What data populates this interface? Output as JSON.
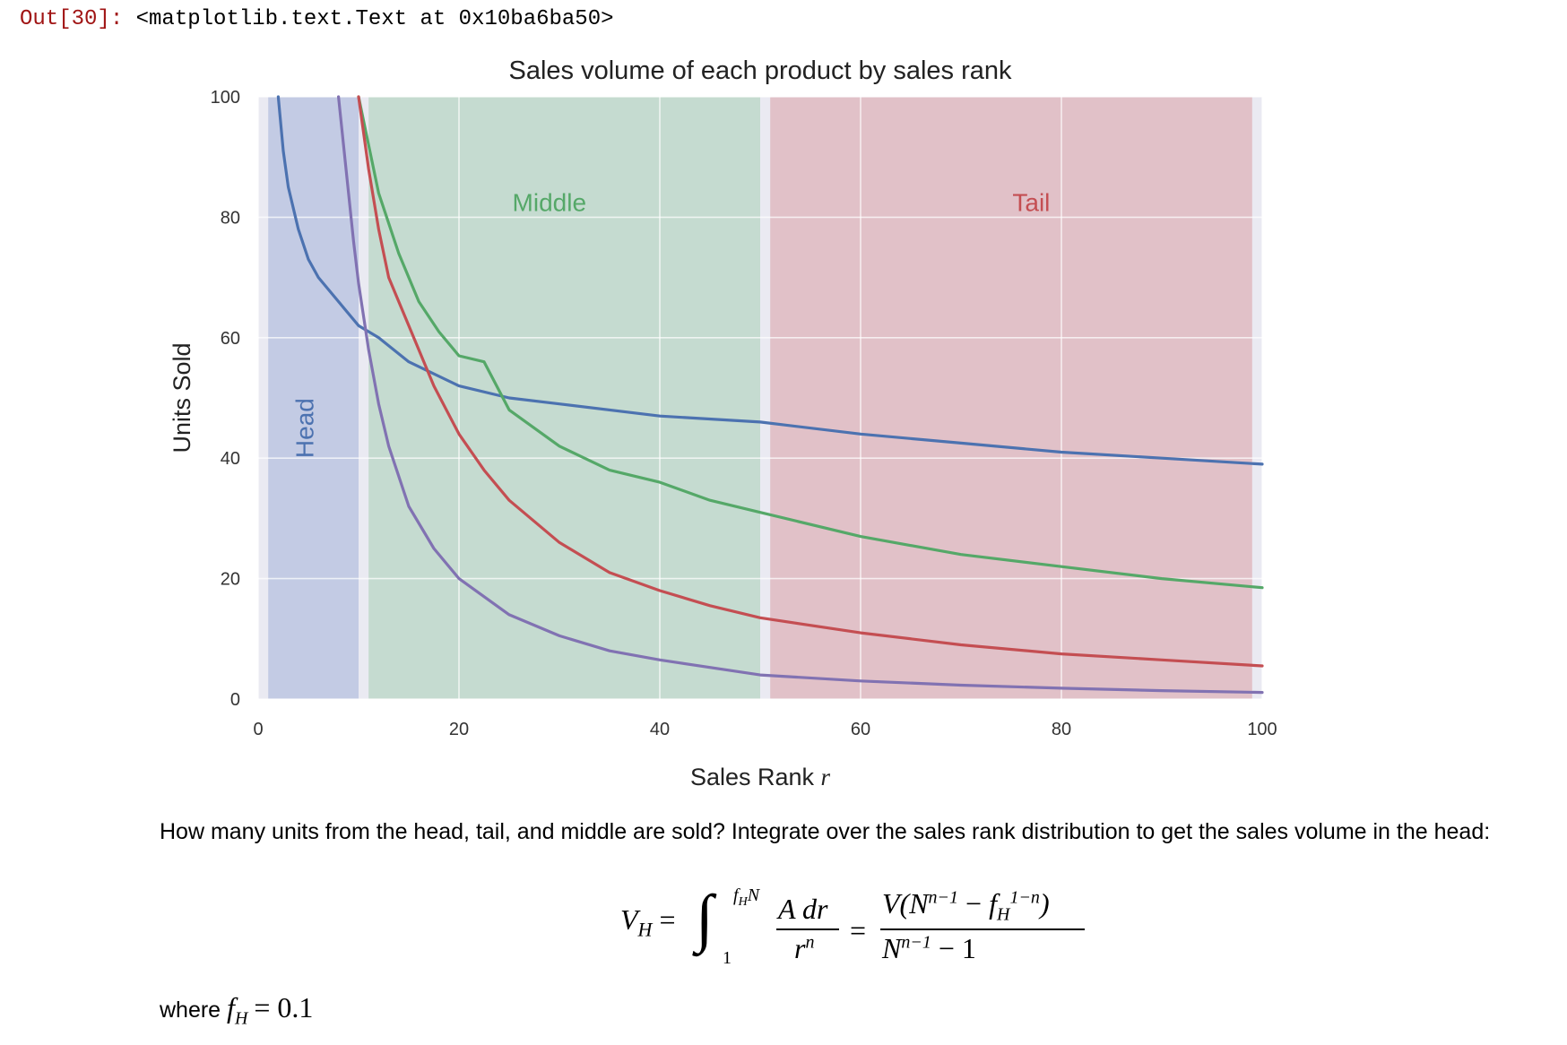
{
  "cell": {
    "prompt": "Out[30]:",
    "repr": "<matplotlib.text.Text at 0x10ba6ba50>"
  },
  "chart_data": {
    "type": "line",
    "title": "Sales volume of each product by sales rank",
    "xlabel": "Sales Rank",
    "xlabel_var": "r",
    "ylabel": "Units Sold",
    "xlim": [
      0,
      100
    ],
    "ylim": [
      0,
      100
    ],
    "xticks": [
      0,
      20,
      40,
      60,
      80,
      100
    ],
    "yticks": [
      0,
      20,
      40,
      60,
      80,
      100
    ],
    "grid": true,
    "regions": [
      {
        "name": "Head",
        "x0": 1,
        "x1": 10,
        "color": "#c3cbe4",
        "label_color": "#4c72b0",
        "label_pos": [
          5.5,
          45
        ],
        "rotated": true
      },
      {
        "name": "Middle",
        "x0": 11,
        "x1": 50,
        "color": "#c5dbd0",
        "label_color": "#55a868",
        "label_pos": [
          29,
          81
        ],
        "rotated": false
      },
      {
        "name": "Tail",
        "x0": 51,
        "x1": 99,
        "color": "#e1c1c8",
        "label_color": "#c44e52",
        "label_pos": [
          77,
          81
        ],
        "rotated": false
      }
    ],
    "series": [
      {
        "color": "#4c72b0",
        "x": [
          2,
          2.5,
          3,
          4,
          5,
          6,
          8,
          10,
          12,
          15,
          20,
          25,
          30,
          40,
          50,
          60,
          70,
          80,
          90,
          100
        ],
        "y": [
          100,
          91,
          85,
          78,
          73,
          70,
          66,
          62,
          60,
          56,
          52,
          50,
          49,
          47,
          46,
          44,
          42.5,
          41,
          40,
          39
        ]
      },
      {
        "color": "#55a868",
        "x": [
          10,
          11,
          12,
          14,
          16,
          18,
          20,
          22.5,
          25,
          30,
          35,
          40,
          45,
          50,
          60,
          70,
          80,
          90,
          100
        ],
        "y": [
          100,
          92,
          84,
          74,
          66,
          61,
          57,
          56,
          48,
          42,
          38,
          36,
          33,
          31,
          27,
          24,
          22,
          20,
          18.5
        ]
      },
      {
        "color": "#c44e52",
        "x": [
          10,
          11,
          12,
          13,
          15,
          17.5,
          20,
          22.5,
          25,
          30,
          35,
          40,
          45,
          50,
          60,
          70,
          80,
          90,
          100
        ],
        "y": [
          100,
          88,
          78,
          70,
          62,
          52,
          44,
          38,
          33,
          26,
          21,
          18,
          15.5,
          13.5,
          11,
          9,
          7.5,
          6.5,
          5.5
        ]
      },
      {
        "color": "#8172b2",
        "x": [
          8,
          8.5,
          9,
          9.5,
          10,
          11,
          12,
          13,
          14,
          15,
          17.5,
          20,
          25,
          30,
          35,
          40,
          50,
          60,
          70,
          80,
          90,
          100
        ],
        "y": [
          100,
          92,
          84,
          76,
          69,
          58,
          49,
          42,
          37,
          32,
          25,
          20,
          14,
          10.5,
          8,
          6.5,
          4,
          3,
          2.3,
          1.8,
          1.4,
          1.1
        ]
      }
    ]
  },
  "text": {
    "paragraph": "How many units from the head, tail, and middle are sold? Integrate over the sales rank distribution to get the sales volume in the head:",
    "where_prefix": "where",
    "where_value": "= 0.1"
  }
}
